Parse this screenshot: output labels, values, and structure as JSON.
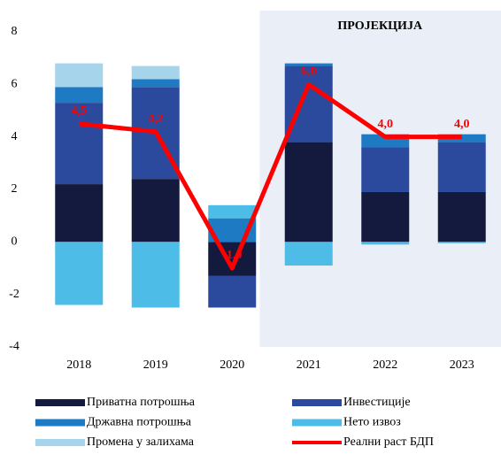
{
  "chart_data": {
    "type": "bar",
    "stacked": true,
    "categories": [
      "2018",
      "2019",
      "2020",
      "2021",
      "2022",
      "2023"
    ],
    "series": [
      {
        "name": "Приватна потрошња",
        "color": "#141a3d",
        "values": [
          2.2,
          2.4,
          -1.3,
          3.8,
          1.9,
          1.9
        ]
      },
      {
        "name": "Инвестиције",
        "color": "#2b4a9e",
        "values": [
          3.1,
          3.5,
          -1.2,
          2.9,
          1.7,
          1.9
        ]
      },
      {
        "name": "Државна потрошња",
        "color": "#1f7ac4",
        "values": [
          0.6,
          0.3,
          0.9,
          0.1,
          0.5,
          0.3
        ]
      },
      {
        "name": "Нето извоз",
        "color": "#4dbde8",
        "values": [
          -2.4,
          -2.5,
          0.5,
          -0.9,
          -0.1,
          -0.05
        ]
      },
      {
        "name": "Промена у залихама",
        "color": "#a6d4ea",
        "values": [
          0.9,
          0.5,
          0,
          0,
          0,
          0
        ]
      },
      {
        "name": "Реални раст БДП",
        "color": "#ff0000",
        "type": "line",
        "values": [
          4.5,
          4.2,
          -1.0,
          6.0,
          4.0,
          4.0
        ],
        "value_labels": [
          "4,5",
          "4,2",
          "-1,0",
          "6,0",
          "4,0",
          "4,0"
        ]
      }
    ],
    "ylim": [
      -4,
      8
    ],
    "yticks": [
      -4,
      -2,
      0,
      2,
      4,
      6,
      8
    ],
    "grid": false,
    "projection": {
      "label": "ПРОЈЕКЦИЈА",
      "from": "2021",
      "color": "#eaeef7"
    }
  }
}
